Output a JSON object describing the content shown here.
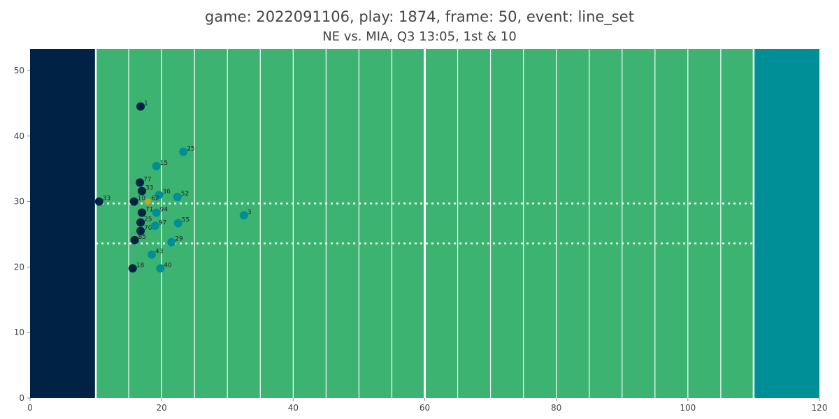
{
  "chart_data": {
    "type": "scatter",
    "title": "game: 2022091106, play: 1874, frame: 50, event: line_set",
    "subtitle": "NE vs. MIA, Q3 13:05, 1st & 10",
    "xlim": [
      0,
      120
    ],
    "ylim": [
      0,
      53.3
    ],
    "x_ticks": [
      0,
      20,
      40,
      60,
      80,
      100,
      120
    ],
    "y_ticks": [
      0,
      10,
      20,
      30,
      40,
      50
    ],
    "grid": false,
    "legend": "none",
    "colors": {
      "field": "#3cb371",
      "left_endzone": "#002244",
      "right_endzone": "#008e97",
      "yard_line": "#ffffff",
      "team_home": "#002244",
      "team_away": "#008e97",
      "football": "#c8a029"
    },
    "field": {
      "left_endzone_x": [
        0,
        10
      ],
      "right_endzone_x": [
        110,
        120
      ],
      "line_of_scrimmage_x": 60,
      "minor_yard_lines": [
        15,
        20,
        25,
        30,
        35,
        40,
        45,
        50,
        55,
        65,
        70,
        75,
        80,
        85,
        90,
        95,
        100,
        105
      ],
      "dotted_lines_y": [
        29.7,
        23.6
      ]
    },
    "series": [
      {
        "team": "home",
        "points": [
          {
            "x": 16.8,
            "y": 44.5,
            "label": "1"
          },
          {
            "x": 16.7,
            "y": 32.9,
            "label": "77"
          },
          {
            "x": 17.0,
            "y": 31.6,
            "label": "33"
          },
          {
            "x": 10.5,
            "y": 30.0,
            "label": "33"
          },
          {
            "x": 15.8,
            "y": 30.0,
            "label": "10"
          },
          {
            "x": 17.0,
            "y": 28.3,
            "label": "71"
          },
          {
            "x": 16.8,
            "y": 26.8,
            "label": "25"
          },
          {
            "x": 16.8,
            "y": 25.5,
            "label": "70"
          },
          {
            "x": 15.9,
            "y": 24.1,
            "label": "85"
          },
          {
            "x": 15.6,
            "y": 19.8,
            "label": "18"
          }
        ]
      },
      {
        "team": "away",
        "points": [
          {
            "x": 23.3,
            "y": 37.6,
            "label": "25"
          },
          {
            "x": 19.2,
            "y": 35.4,
            "label": "15"
          },
          {
            "x": 19.6,
            "y": 31.0,
            "label": "36"
          },
          {
            "x": 22.4,
            "y": 30.7,
            "label": "52"
          },
          {
            "x": 19.2,
            "y": 28.3,
            "label": "94"
          },
          {
            "x": 32.5,
            "y": 27.9,
            "label": "3"
          },
          {
            "x": 22.5,
            "y": 26.7,
            "label": "55"
          },
          {
            "x": 19.0,
            "y": 26.3,
            "label": "97"
          },
          {
            "x": 21.5,
            "y": 23.8,
            "label": "29"
          },
          {
            "x": 18.5,
            "y": 21.9,
            "label": "43"
          },
          {
            "x": 19.8,
            "y": 19.8,
            "label": "40"
          }
        ]
      },
      {
        "team": "football",
        "points": [
          {
            "x": 17.9,
            "y": 30.0,
            "label": "62"
          }
        ]
      }
    ]
  }
}
